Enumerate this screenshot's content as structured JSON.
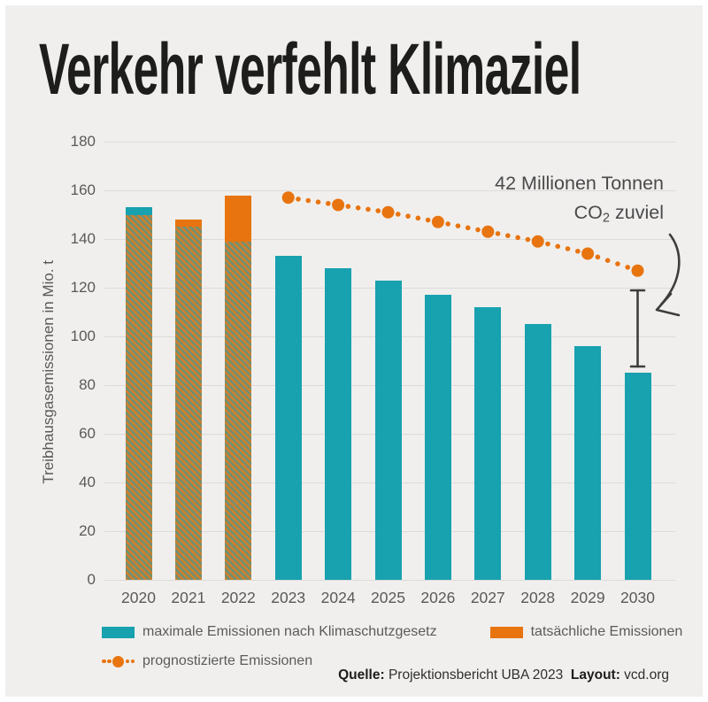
{
  "title": "Verkehr verfehlt Klimaziel",
  "chart_data": {
    "type": "bar",
    "title": "Verkehr verfehlt Klimaziel",
    "xlabel": "",
    "ylabel": "Treibhausgasemissionen in Mio. t",
    "ylim": [
      0,
      180
    ],
    "yticks": [
      180,
      160,
      140,
      120,
      100,
      80,
      60,
      40,
      20,
      0
    ],
    "grid": true,
    "legend_position": "bottom",
    "categories": [
      "2020",
      "2021",
      "2022",
      "2023",
      "2024",
      "2025",
      "2026",
      "2027",
      "2028",
      "2029",
      "2030"
    ],
    "series": [
      {
        "name": "maximale Emissionen nach Klimaschutzgesetz",
        "type": "bar",
        "color": "#18a1af",
        "values": [
          153,
          145,
          139,
          133,
          128,
          123,
          117,
          112,
          105,
          96,
          85
        ]
      },
      {
        "name": "tatsächliche Emissionen",
        "type": "bar",
        "color": "#e8740f",
        "values": [
          150,
          148,
          158,
          null,
          null,
          null,
          null,
          null,
          null,
          null,
          null
        ]
      },
      {
        "name": "prognostizierte Emissionen",
        "type": "dotted-line",
        "color": "#e8740f",
        "values": [
          null,
          null,
          null,
          157,
          154,
          151,
          147,
          143,
          139,
          134,
          127
        ]
      }
    ],
    "annotation": {
      "text": "42 Millionen Tonnen CO2 zuviel",
      "gap_millions_tonnes_2030": 42
    }
  },
  "annotation": {
    "line1": "42 Millionen Tonnen",
    "co": "CO",
    "sub": "2",
    "rest": " zuviel"
  },
  "legend": {
    "items": [
      {
        "label": "maximale Emissionen nach Klimaschutzgesetz"
      },
      {
        "label": "tatsächliche Emissionen"
      },
      {
        "label": "prognostizierte Emissionen"
      }
    ]
  },
  "source": {
    "quelle_label": "Quelle:",
    "quelle_value": " Projektionsbericht UBA 2023",
    "layout_label": "Layout:",
    "layout_value": " vcd.org"
  },
  "colors": {
    "teal": "#18a1af",
    "orange": "#e8740f",
    "hatch_orange": "#cf7f2e",
    "hatch_green": "#6e9173",
    "background": "#f0efed",
    "grid": "#dcdbd9",
    "axis_text": "#595959",
    "title_text": "#1d1d1b",
    "annotation_text": "#4a4a4c",
    "arrow": "#3d3d3d"
  }
}
